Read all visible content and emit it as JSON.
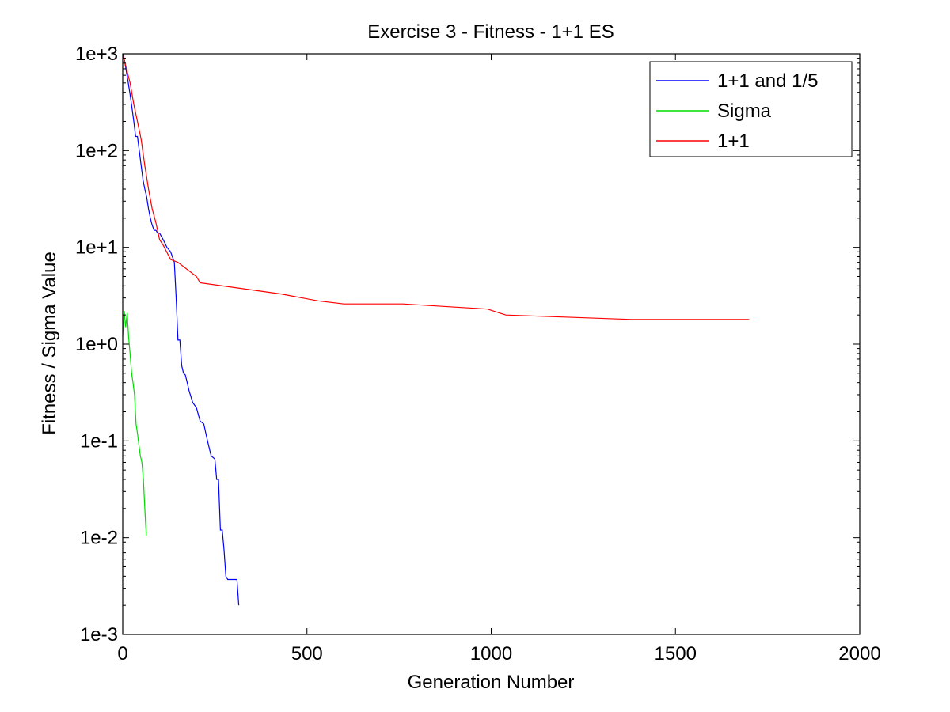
{
  "chart_data": {
    "type": "line",
    "title": "Exercise 3 - Fitness - 1+1 ES",
    "xlabel": "Generation Number",
    "ylabel": "Fitness / Sigma Value",
    "xlim": [
      0,
      2000
    ],
    "ylim": [
      0.001,
      1000
    ],
    "yscale": "log",
    "grid": false,
    "legend_position": "top-right",
    "x_ticks": [
      0,
      500,
      1000,
      1500,
      2000
    ],
    "x_tick_labels": [
      "0",
      "500",
      "1000",
      "1500",
      "2000"
    ],
    "y_ticks": [
      0.001,
      0.01,
      0.1,
      1,
      10,
      100,
      1000
    ],
    "y_tick_labels": [
      "1e-3",
      "1e-2",
      "1e-1",
      "1e+0",
      "1e+1",
      "1e+2",
      "1e+3"
    ],
    "series": [
      {
        "name": "1+1 and 1/5",
        "color": "#0000ff",
        "x": [
          0,
          5,
          10,
          15,
          20,
          25,
          30,
          35,
          40,
          45,
          50,
          55,
          60,
          65,
          70,
          75,
          80,
          85,
          90,
          95,
          100,
          110,
          120,
          130,
          140,
          145,
          150,
          155,
          160,
          165,
          170,
          175,
          180,
          190,
          200,
          210,
          220,
          230,
          240,
          250,
          255,
          260,
          265,
          270,
          275,
          280,
          285,
          290,
          295,
          300,
          310,
          315
        ],
        "y": [
          1000,
          850,
          650,
          500,
          380,
          280,
          200,
          140,
          140,
          100,
          70,
          50,
          40,
          33,
          25,
          20,
          17,
          15,
          15,
          14,
          14,
          12,
          10,
          9,
          7,
          3,
          1.1,
          1.1,
          0.6,
          0.5,
          0.48,
          0.4,
          0.33,
          0.25,
          0.22,
          0.16,
          0.15,
          0.1,
          0.07,
          0.065,
          0.04,
          0.04,
          0.012,
          0.012,
          0.0075,
          0.004,
          0.0037,
          0.0037,
          0.0037,
          0.0037,
          0.0037,
          0.002
        ]
      },
      {
        "name": "Sigma",
        "color": "#00dd00",
        "x": [
          0,
          4,
          8,
          12,
          16,
          20,
          24,
          28,
          32,
          36,
          40,
          44,
          48,
          52,
          56,
          60,
          64
        ],
        "y": [
          1.2,
          2.2,
          1.5,
          2.1,
          1.2,
          0.8,
          0.5,
          0.4,
          0.3,
          0.15,
          0.12,
          0.09,
          0.07,
          0.06,
          0.04,
          0.02,
          0.0105
        ]
      },
      {
        "name": "1+1",
        "color": "#ff0000",
        "x": [
          0,
          10,
          20,
          30,
          40,
          50,
          60,
          70,
          80,
          90,
          100,
          110,
          130,
          150,
          200,
          210,
          430,
          530,
          600,
          760,
          990,
          1040,
          1380,
          1700
        ],
        "y": [
          1000,
          700,
          500,
          300,
          200,
          130,
          70,
          40,
          25,
          18,
          12,
          10.5,
          7.5,
          7,
          5,
          4.3,
          3.3,
          2.8,
          2.6,
          2.6,
          2.3,
          2.0,
          1.8,
          1.8
        ]
      }
    ]
  }
}
